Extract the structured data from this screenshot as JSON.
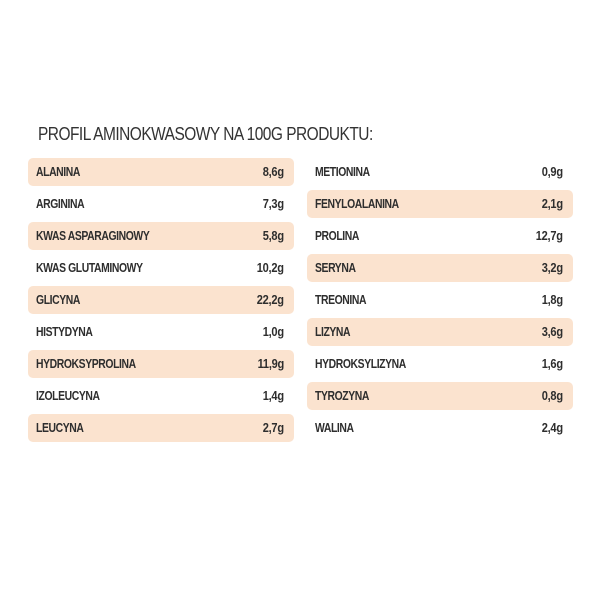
{
  "title": "PROFIL AMINOKWASOWY NA 100G PRODUKTU:",
  "colors": {
    "row_highlight": "#fbe3cf",
    "text": "#2e2e2e"
  },
  "left": [
    {
      "name": "ALANINA",
      "value": "8,6g",
      "shaded": true
    },
    {
      "name": "ARGININA",
      "value": "7,3g",
      "shaded": false
    },
    {
      "name": "KWAS ASPARAGINOWY",
      "value": "5,8g",
      "shaded": true
    },
    {
      "name": "KWAS GLUTAMINOWY",
      "value": "10,2g",
      "shaded": false
    },
    {
      "name": "GLICYNA",
      "value": "22,2g",
      "shaded": true
    },
    {
      "name": "HISTYDYNA",
      "value": "1,0g",
      "shaded": false
    },
    {
      "name": "HYDROKSYPROLINA",
      "value": "11,9g",
      "shaded": true
    },
    {
      "name": "IZOLEUCYNA",
      "value": "1,4g",
      "shaded": false
    },
    {
      "name": "LEUCYNA",
      "value": "2,7g",
      "shaded": true
    }
  ],
  "right": [
    {
      "name": "METIONINA",
      "value": "0,9g",
      "shaded": false
    },
    {
      "name": "FENYLOALANINA",
      "value": "2,1g",
      "shaded": true
    },
    {
      "name": "PROLINA",
      "value": "12,7g",
      "shaded": false
    },
    {
      "name": "SERYNA",
      "value": "3,2g",
      "shaded": true
    },
    {
      "name": "TREONINA",
      "value": "1,8g",
      "shaded": false
    },
    {
      "name": "LIZYNA",
      "value": "3,6g",
      "shaded": true
    },
    {
      "name": "HYDROKSYLIZYNA",
      "value": "1,6g",
      "shaded": false
    },
    {
      "name": "TYROZYNA",
      "value": "0,8g",
      "shaded": true
    },
    {
      "name": "WALINA",
      "value": "2,4g",
      "shaded": false
    }
  ]
}
